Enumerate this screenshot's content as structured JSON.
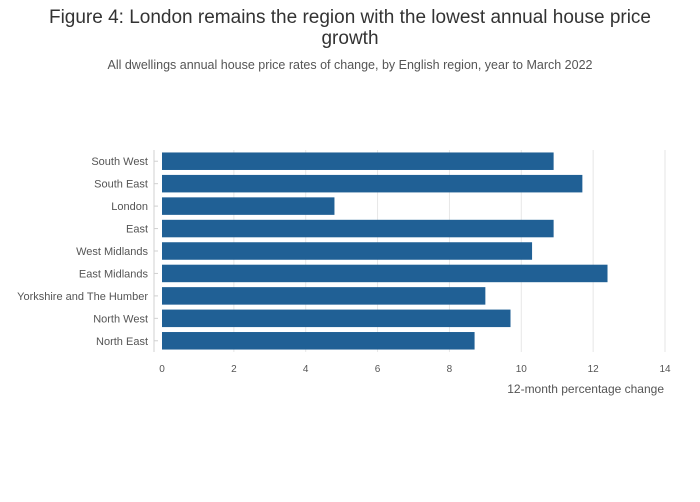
{
  "title": "Figure 4: London remains the region with the lowest annual house price growth",
  "subtitle": "All dwellings annual house price rates of change, by English region, year to March 2022",
  "chart_data": {
    "type": "bar",
    "orientation": "horizontal",
    "categories": [
      "South West",
      "South East",
      "London",
      "East",
      "West Midlands",
      "East Midlands",
      "Yorkshire and The Humber",
      "North West",
      "North East"
    ],
    "values": [
      10.9,
      11.7,
      4.8,
      10.9,
      10.3,
      12.4,
      9.0,
      9.7,
      8.7
    ],
    "xlabel": "12-month percentage change",
    "ylabel": "",
    "xlim": [
      0,
      14
    ],
    "xticks": [
      0,
      2,
      4,
      6,
      8,
      10,
      12,
      14
    ],
    "grid": true,
    "bar_color": "#206095"
  }
}
